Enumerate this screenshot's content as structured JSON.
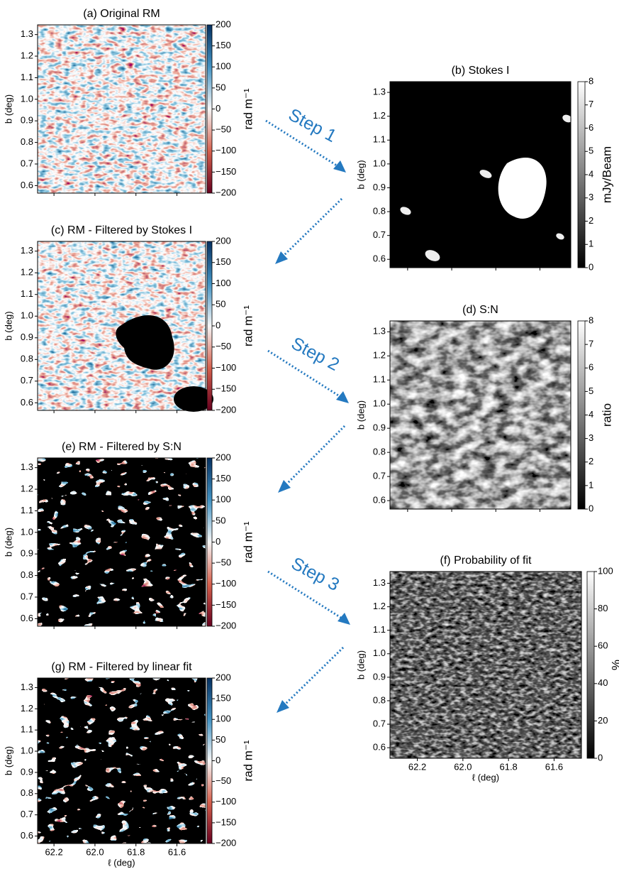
{
  "chart_data": [
    {
      "type": "heatmap",
      "title": "(a) Original RM",
      "ylabel": "b (deg)",
      "colormap": "RdBu",
      "show_xticklabels": false,
      "xlim": [
        62.28,
        61.46
      ],
      "ylim": [
        0.565,
        1.345
      ],
      "xticks": [
        62.2,
        {
          "value": 62,
          "label": "62.0"
        },
        61.8,
        61.6
      ],
      "yticks": [
        0.6,
        0.7,
        0.8,
        0.9,
        {
          "value": 1,
          "label": "1.0"
        },
        1.1,
        1.2,
        1.3
      ],
      "colorbar": {
        "label": "rad m⁻¹",
        "lim": [
          -200,
          200
        ],
        "ticks": [
          {
            "value": 200,
            "label": "200"
          },
          150,
          100,
          50,
          0,
          {
            "value": -50,
            "label": "−50"
          },
          {
            "value": -100,
            "label": "−100"
          },
          {
            "value": -150,
            "label": "−150"
          },
          {
            "value": -200,
            "label": "−200"
          }
        ]
      }
    },
    {
      "type": "heatmap",
      "title": "(b) Stokes I",
      "ylabel": "b (deg)",
      "colormap": "gray",
      "show_xticklabels": false,
      "xlim": [
        62.28,
        61.46
      ],
      "ylim": [
        0.565,
        1.345
      ],
      "xticks": [
        62.2,
        {
          "value": 62,
          "label": "62.0"
        },
        61.8,
        61.6
      ],
      "yticks": [
        0.6,
        0.7,
        0.8,
        0.9,
        {
          "value": 1,
          "label": "1.0"
        },
        1.1,
        1.2,
        1.3
      ],
      "colorbar": {
        "label": "mJy/Beam",
        "lim": [
          0,
          8
        ],
        "ticks": [
          0,
          1,
          2,
          3,
          4,
          5,
          6,
          7,
          8
        ]
      }
    },
    {
      "type": "heatmap",
      "title": "(c) RM - Filtered by Stokes I",
      "ylabel": "b (deg)",
      "colormap": "RdBu",
      "show_xticklabels": false,
      "xlim": [
        62.28,
        61.46
      ],
      "ylim": [
        0.565,
        1.345
      ],
      "xticks": [
        62.2,
        {
          "value": 62,
          "label": "62.0"
        },
        61.8,
        61.6
      ],
      "yticks": [
        0.6,
        0.7,
        0.8,
        0.9,
        {
          "value": 1,
          "label": "1.0"
        },
        1.1,
        1.2,
        1.3
      ],
      "colorbar": {
        "label": "rad m⁻¹",
        "lim": [
          -200,
          200
        ],
        "ticks": [
          {
            "value": 200,
            "label": "200"
          },
          150,
          100,
          50,
          0,
          {
            "value": -50,
            "label": "−50"
          },
          {
            "value": -100,
            "label": "−100"
          },
          {
            "value": -150,
            "label": "−150"
          },
          {
            "value": -200,
            "label": "−200"
          }
        ]
      }
    },
    {
      "type": "heatmap",
      "title": "(d) S:N",
      "ylabel": "b (deg)",
      "colormap": "gray",
      "show_xticklabels": false,
      "xlim": [
        62.28,
        61.46
      ],
      "ylim": [
        0.565,
        1.345
      ],
      "xticks": [
        62.2,
        {
          "value": 62,
          "label": "62.0"
        },
        61.8,
        61.6
      ],
      "yticks": [
        0.6,
        0.7,
        0.8,
        0.9,
        {
          "value": 1,
          "label": "1.0"
        },
        1.1,
        1.2,
        1.3
      ],
      "colorbar": {
        "label": "ratio",
        "lim": [
          0,
          8
        ],
        "ticks": [
          0,
          1,
          2,
          3,
          4,
          5,
          6,
          7,
          8
        ]
      }
    },
    {
      "type": "heatmap",
      "title": "(e) RM - Filtered by S:N",
      "ylabel": "b (deg)",
      "colormap": "RdBu",
      "show_xticklabels": false,
      "xlim": [
        62.28,
        61.46
      ],
      "ylim": [
        0.565,
        1.345
      ],
      "xticks": [
        62.2,
        {
          "value": 62,
          "label": "62.0"
        },
        61.8,
        61.6
      ],
      "yticks": [
        0.6,
        0.7,
        0.8,
        0.9,
        {
          "value": 1,
          "label": "1.0"
        },
        1.1,
        1.2,
        1.3
      ],
      "colorbar": {
        "label": "rad m⁻¹",
        "lim": [
          -200,
          200
        ],
        "ticks": [
          {
            "value": 200,
            "label": "200"
          },
          150,
          100,
          50,
          0,
          {
            "value": -50,
            "label": "−50"
          },
          {
            "value": -100,
            "label": "−100"
          },
          {
            "value": -150,
            "label": "−150"
          },
          {
            "value": -200,
            "label": "−200"
          }
        ]
      }
    },
    {
      "type": "heatmap",
      "title": "(f) Probability of fit",
      "xlabel": "ℓ (deg)",
      "ylabel": "b (deg)",
      "colormap": "gray",
      "show_xticklabels": true,
      "xlim": [
        62.32,
        61.48
      ],
      "ylim": [
        0.555,
        1.35
      ],
      "xticks": [
        62.2,
        {
          "value": 62,
          "label": "62.0"
        },
        61.8,
        61.6
      ],
      "yticks": [
        0.6,
        0.7,
        0.8,
        0.9,
        {
          "value": 1,
          "label": "1.0"
        },
        1.1,
        1.2,
        1.3
      ],
      "colorbar": {
        "label": "%",
        "lim": [
          0,
          100
        ],
        "ticks": [
          0,
          20,
          40,
          60,
          80,
          100
        ]
      }
    },
    {
      "type": "heatmap",
      "title": "(g) RM - Filtered by linear fit",
      "xlabel": "ℓ (deg)",
      "ylabel": "b (deg)",
      "colormap": "RdBu",
      "show_xticklabels": true,
      "xlim": [
        62.28,
        61.46
      ],
      "ylim": [
        0.565,
        1.345
      ],
      "xticks": [
        62.2,
        {
          "value": 62,
          "label": "62.0"
        },
        61.8,
        61.6
      ],
      "yticks": [
        0.6,
        0.7,
        0.8,
        0.9,
        {
          "value": 1,
          "label": "1.0"
        },
        1.1,
        1.2,
        1.3
      ],
      "colorbar": {
        "label": "rad m⁻¹",
        "lim": [
          -200,
          200
        ],
        "ticks": [
          {
            "value": 200,
            "label": "200"
          },
          150,
          100,
          50,
          0,
          {
            "value": -50,
            "label": "−50"
          },
          {
            "value": -100,
            "label": "−100"
          },
          {
            "value": -150,
            "label": "−150"
          },
          {
            "value": -200,
            "label": "−200"
          }
        ]
      }
    }
  ],
  "annotations": [
    "Step 1",
    "Step 2",
    "Step 3"
  ]
}
